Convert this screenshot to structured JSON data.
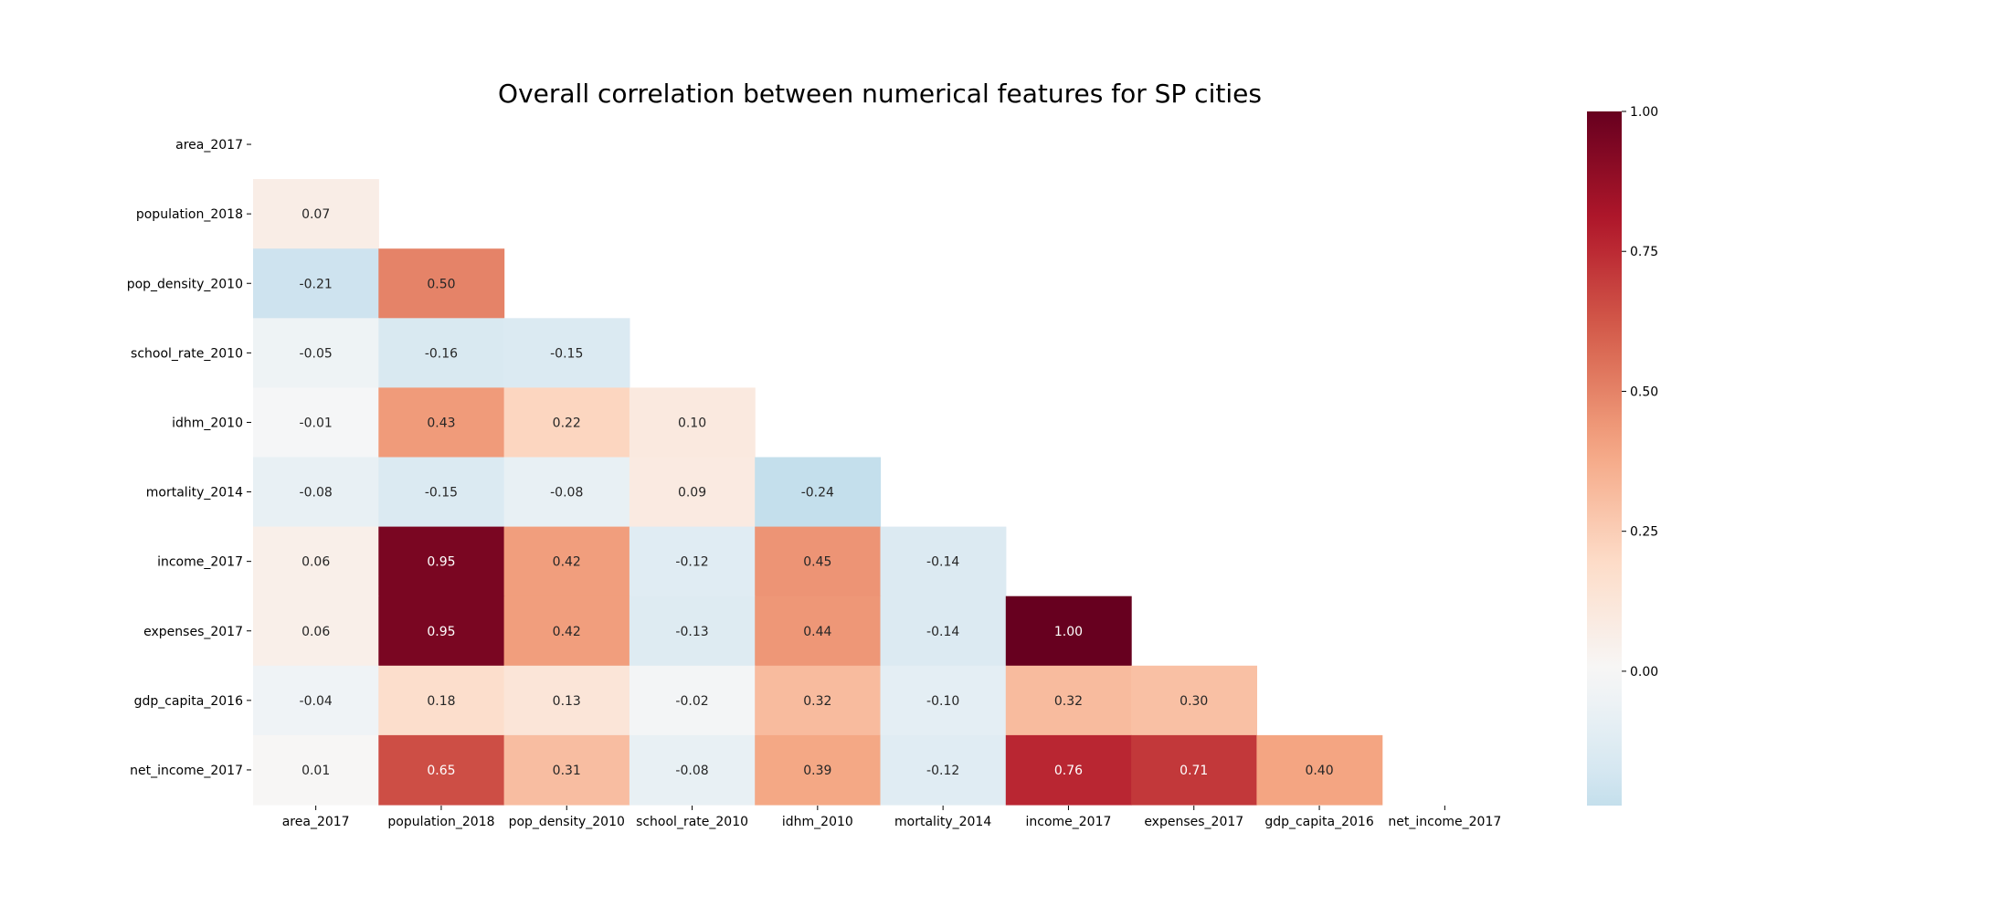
{
  "chart_data": {
    "type": "heatmap",
    "title": "Overall correlation between numerical features for SP cities",
    "xlabel": "",
    "ylabel": "",
    "mask": "upper-triangle-including-diagonal",
    "labels": [
      "area_2017",
      "population_2018",
      "pop_density_2010",
      "school_rate_2010",
      "idhm_2010",
      "mortality_2014",
      "income_2017",
      "expenses_2017",
      "gdp_capita_2016",
      "net_income_2017"
    ],
    "cells": [
      {
        "row": "population_2018",
        "col": "area_2017",
        "value": 0.07,
        "label": "0.07"
      },
      {
        "row": "pop_density_2010",
        "col": "area_2017",
        "value": -0.21,
        "label": "-0.21"
      },
      {
        "row": "pop_density_2010",
        "col": "population_2018",
        "value": 0.5,
        "label": "0.50"
      },
      {
        "row": "school_rate_2010",
        "col": "area_2017",
        "value": -0.05,
        "label": "-0.05"
      },
      {
        "row": "school_rate_2010",
        "col": "population_2018",
        "value": -0.16,
        "label": "-0.16"
      },
      {
        "row": "school_rate_2010",
        "col": "pop_density_2010",
        "value": -0.15,
        "label": "-0.15"
      },
      {
        "row": "idhm_2010",
        "col": "area_2017",
        "value": -0.01,
        "label": "-0.01"
      },
      {
        "row": "idhm_2010",
        "col": "population_2018",
        "value": 0.43,
        "label": "0.43"
      },
      {
        "row": "idhm_2010",
        "col": "pop_density_2010",
        "value": 0.22,
        "label": "0.22"
      },
      {
        "row": "idhm_2010",
        "col": "school_rate_2010",
        "value": 0.1,
        "label": "0.10"
      },
      {
        "row": "mortality_2014",
        "col": "area_2017",
        "value": -0.08,
        "label": "-0.08"
      },
      {
        "row": "mortality_2014",
        "col": "population_2018",
        "value": -0.15,
        "label": "-0.15"
      },
      {
        "row": "mortality_2014",
        "col": "pop_density_2010",
        "value": -0.08,
        "label": "-0.08"
      },
      {
        "row": "mortality_2014",
        "col": "school_rate_2010",
        "value": 0.09,
        "label": "0.09"
      },
      {
        "row": "mortality_2014",
        "col": "idhm_2010",
        "value": -0.24,
        "label": "-0.24"
      },
      {
        "row": "income_2017",
        "col": "area_2017",
        "value": 0.06,
        "label": "0.06"
      },
      {
        "row": "income_2017",
        "col": "population_2018",
        "value": 0.95,
        "label": "0.95"
      },
      {
        "row": "income_2017",
        "col": "pop_density_2010",
        "value": 0.42,
        "label": "0.42"
      },
      {
        "row": "income_2017",
        "col": "school_rate_2010",
        "value": -0.12,
        "label": "-0.12"
      },
      {
        "row": "income_2017",
        "col": "idhm_2010",
        "value": 0.45,
        "label": "0.45"
      },
      {
        "row": "income_2017",
        "col": "mortality_2014",
        "value": -0.14,
        "label": "-0.14"
      },
      {
        "row": "expenses_2017",
        "col": "area_2017",
        "value": 0.06,
        "label": "0.06"
      },
      {
        "row": "expenses_2017",
        "col": "population_2018",
        "value": 0.95,
        "label": "0.95"
      },
      {
        "row": "expenses_2017",
        "col": "pop_density_2010",
        "value": 0.42,
        "label": "0.42"
      },
      {
        "row": "expenses_2017",
        "col": "school_rate_2010",
        "value": -0.13,
        "label": "-0.13"
      },
      {
        "row": "expenses_2017",
        "col": "idhm_2010",
        "value": 0.44,
        "label": "0.44"
      },
      {
        "row": "expenses_2017",
        "col": "mortality_2014",
        "value": -0.14,
        "label": "-0.14"
      },
      {
        "row": "expenses_2017",
        "col": "income_2017",
        "value": 1.0,
        "label": "1.00"
      },
      {
        "row": "gdp_capita_2016",
        "col": "area_2017",
        "value": -0.04,
        "label": "-0.04"
      },
      {
        "row": "gdp_capita_2016",
        "col": "population_2018",
        "value": 0.18,
        "label": "0.18"
      },
      {
        "row": "gdp_capita_2016",
        "col": "pop_density_2010",
        "value": 0.13,
        "label": "0.13"
      },
      {
        "row": "gdp_capita_2016",
        "col": "school_rate_2010",
        "value": -0.02,
        "label": "-0.02"
      },
      {
        "row": "gdp_capita_2016",
        "col": "idhm_2010",
        "value": 0.32,
        "label": "0.32"
      },
      {
        "row": "gdp_capita_2016",
        "col": "mortality_2014",
        "value": -0.1,
        "label": "-0.10"
      },
      {
        "row": "gdp_capita_2016",
        "col": "income_2017",
        "value": 0.32,
        "label": "0.32"
      },
      {
        "row": "gdp_capita_2016",
        "col": "expenses_2017",
        "value": 0.3,
        "label": "0.30"
      },
      {
        "row": "net_income_2017",
        "col": "area_2017",
        "value": 0.01,
        "label": "0.01"
      },
      {
        "row": "net_income_2017",
        "col": "population_2018",
        "value": 0.65,
        "label": "0.65"
      },
      {
        "row": "net_income_2017",
        "col": "pop_density_2010",
        "value": 0.31,
        "label": "0.31"
      },
      {
        "row": "net_income_2017",
        "col": "school_rate_2010",
        "value": -0.08,
        "label": "-0.08"
      },
      {
        "row": "net_income_2017",
        "col": "idhm_2010",
        "value": 0.39,
        "label": "0.39"
      },
      {
        "row": "net_income_2017",
        "col": "mortality_2014",
        "value": -0.12,
        "label": "-0.12"
      },
      {
        "row": "net_income_2017",
        "col": "income_2017",
        "value": 0.76,
        "label": "0.76"
      },
      {
        "row": "net_income_2017",
        "col": "expenses_2017",
        "value": 0.71,
        "label": "0.71"
      },
      {
        "row": "net_income_2017",
        "col": "gdp_capita_2016",
        "value": 0.4,
        "label": "0.40"
      }
    ],
    "colorbar": {
      "colormap": "RdBu_r",
      "range": [
        -0.24,
        1.0
      ],
      "ticks": [
        0.0,
        0.25,
        0.5,
        0.75,
        1.0
      ],
      "tick_labels": [
        "0.00",
        "0.25",
        "0.50",
        "0.75",
        "1.00"
      ]
    },
    "grid": false,
    "legend": "colorbar-right"
  }
}
